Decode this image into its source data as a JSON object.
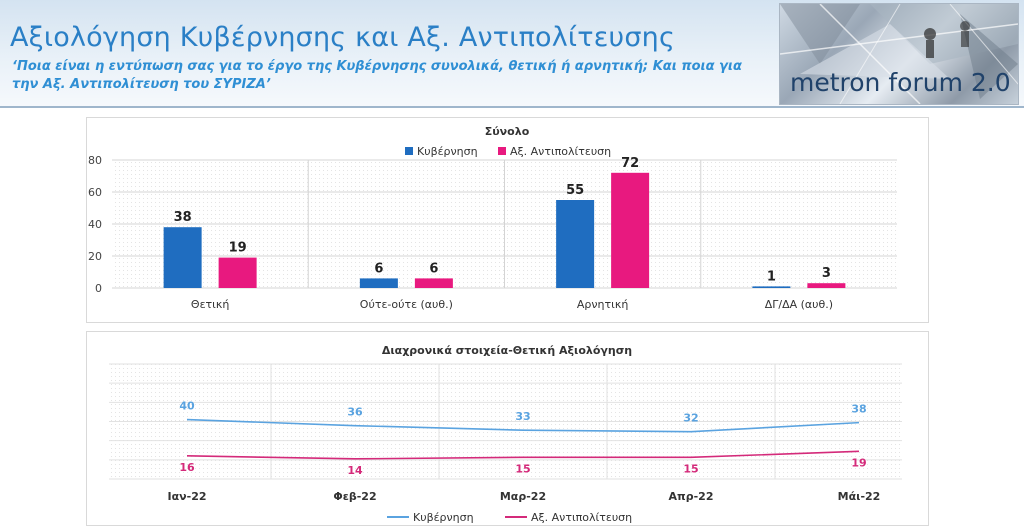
{
  "header": {
    "title": "Αξιολόγηση Κυβέρνησης και Αξ. Αντιπολίτευσης",
    "subtitle": "‘Ποια είναι η εντύπωση σας για το έργο της Κυβέρνησης συνολικά, θετική ή αρνητική; Και ποια για την Αξ. Αντιπολίτευση του ΣΥΡΙΖΑ’",
    "logo_text": "metron forum 2.0"
  },
  "colors": {
    "kyvernisi": "#1f6dc0",
    "antipolitefsi": "#e8197f",
    "line_kyvernisi": "#5aa3e0",
    "line_antipolitefsi": "#d42a7a"
  },
  "chart_data": [
    {
      "type": "bar",
      "title": "Σύνολο",
      "categories": [
        "Θετική",
        "Ούτε-ούτε (αυθ.)",
        "Αρνητική",
        "ΔΓ/ΔΑ (αυθ.)"
      ],
      "series": [
        {
          "name": "Κυβέρνηση",
          "values": [
            38,
            6,
            55,
            1
          ]
        },
        {
          "name": "Αξ. Αντιπολίτευση",
          "values": [
            19,
            6,
            72,
            3
          ]
        }
      ],
      "yticks": [
        0,
        20,
        40,
        60,
        80
      ],
      "ylim": [
        0,
        80
      ],
      "legend": "top",
      "grid": true
    },
    {
      "type": "line",
      "title": "Διαχρονικά στοιχεία-Θετική Αξιολόγηση",
      "categories": [
        "Ιαν-22",
        "Φεβ-22",
        "Μαρ-22",
        "Απρ-22",
        "Μάι-22"
      ],
      "series": [
        {
          "name": "Κυβέρνηση",
          "values": [
            40,
            36,
            33,
            32,
            38
          ]
        },
        {
          "name": "Αξ. Αντιπολίτευση",
          "values": [
            16,
            14,
            15,
            15,
            19
          ]
        }
      ],
      "legend": "bottom",
      "grid": true
    }
  ]
}
